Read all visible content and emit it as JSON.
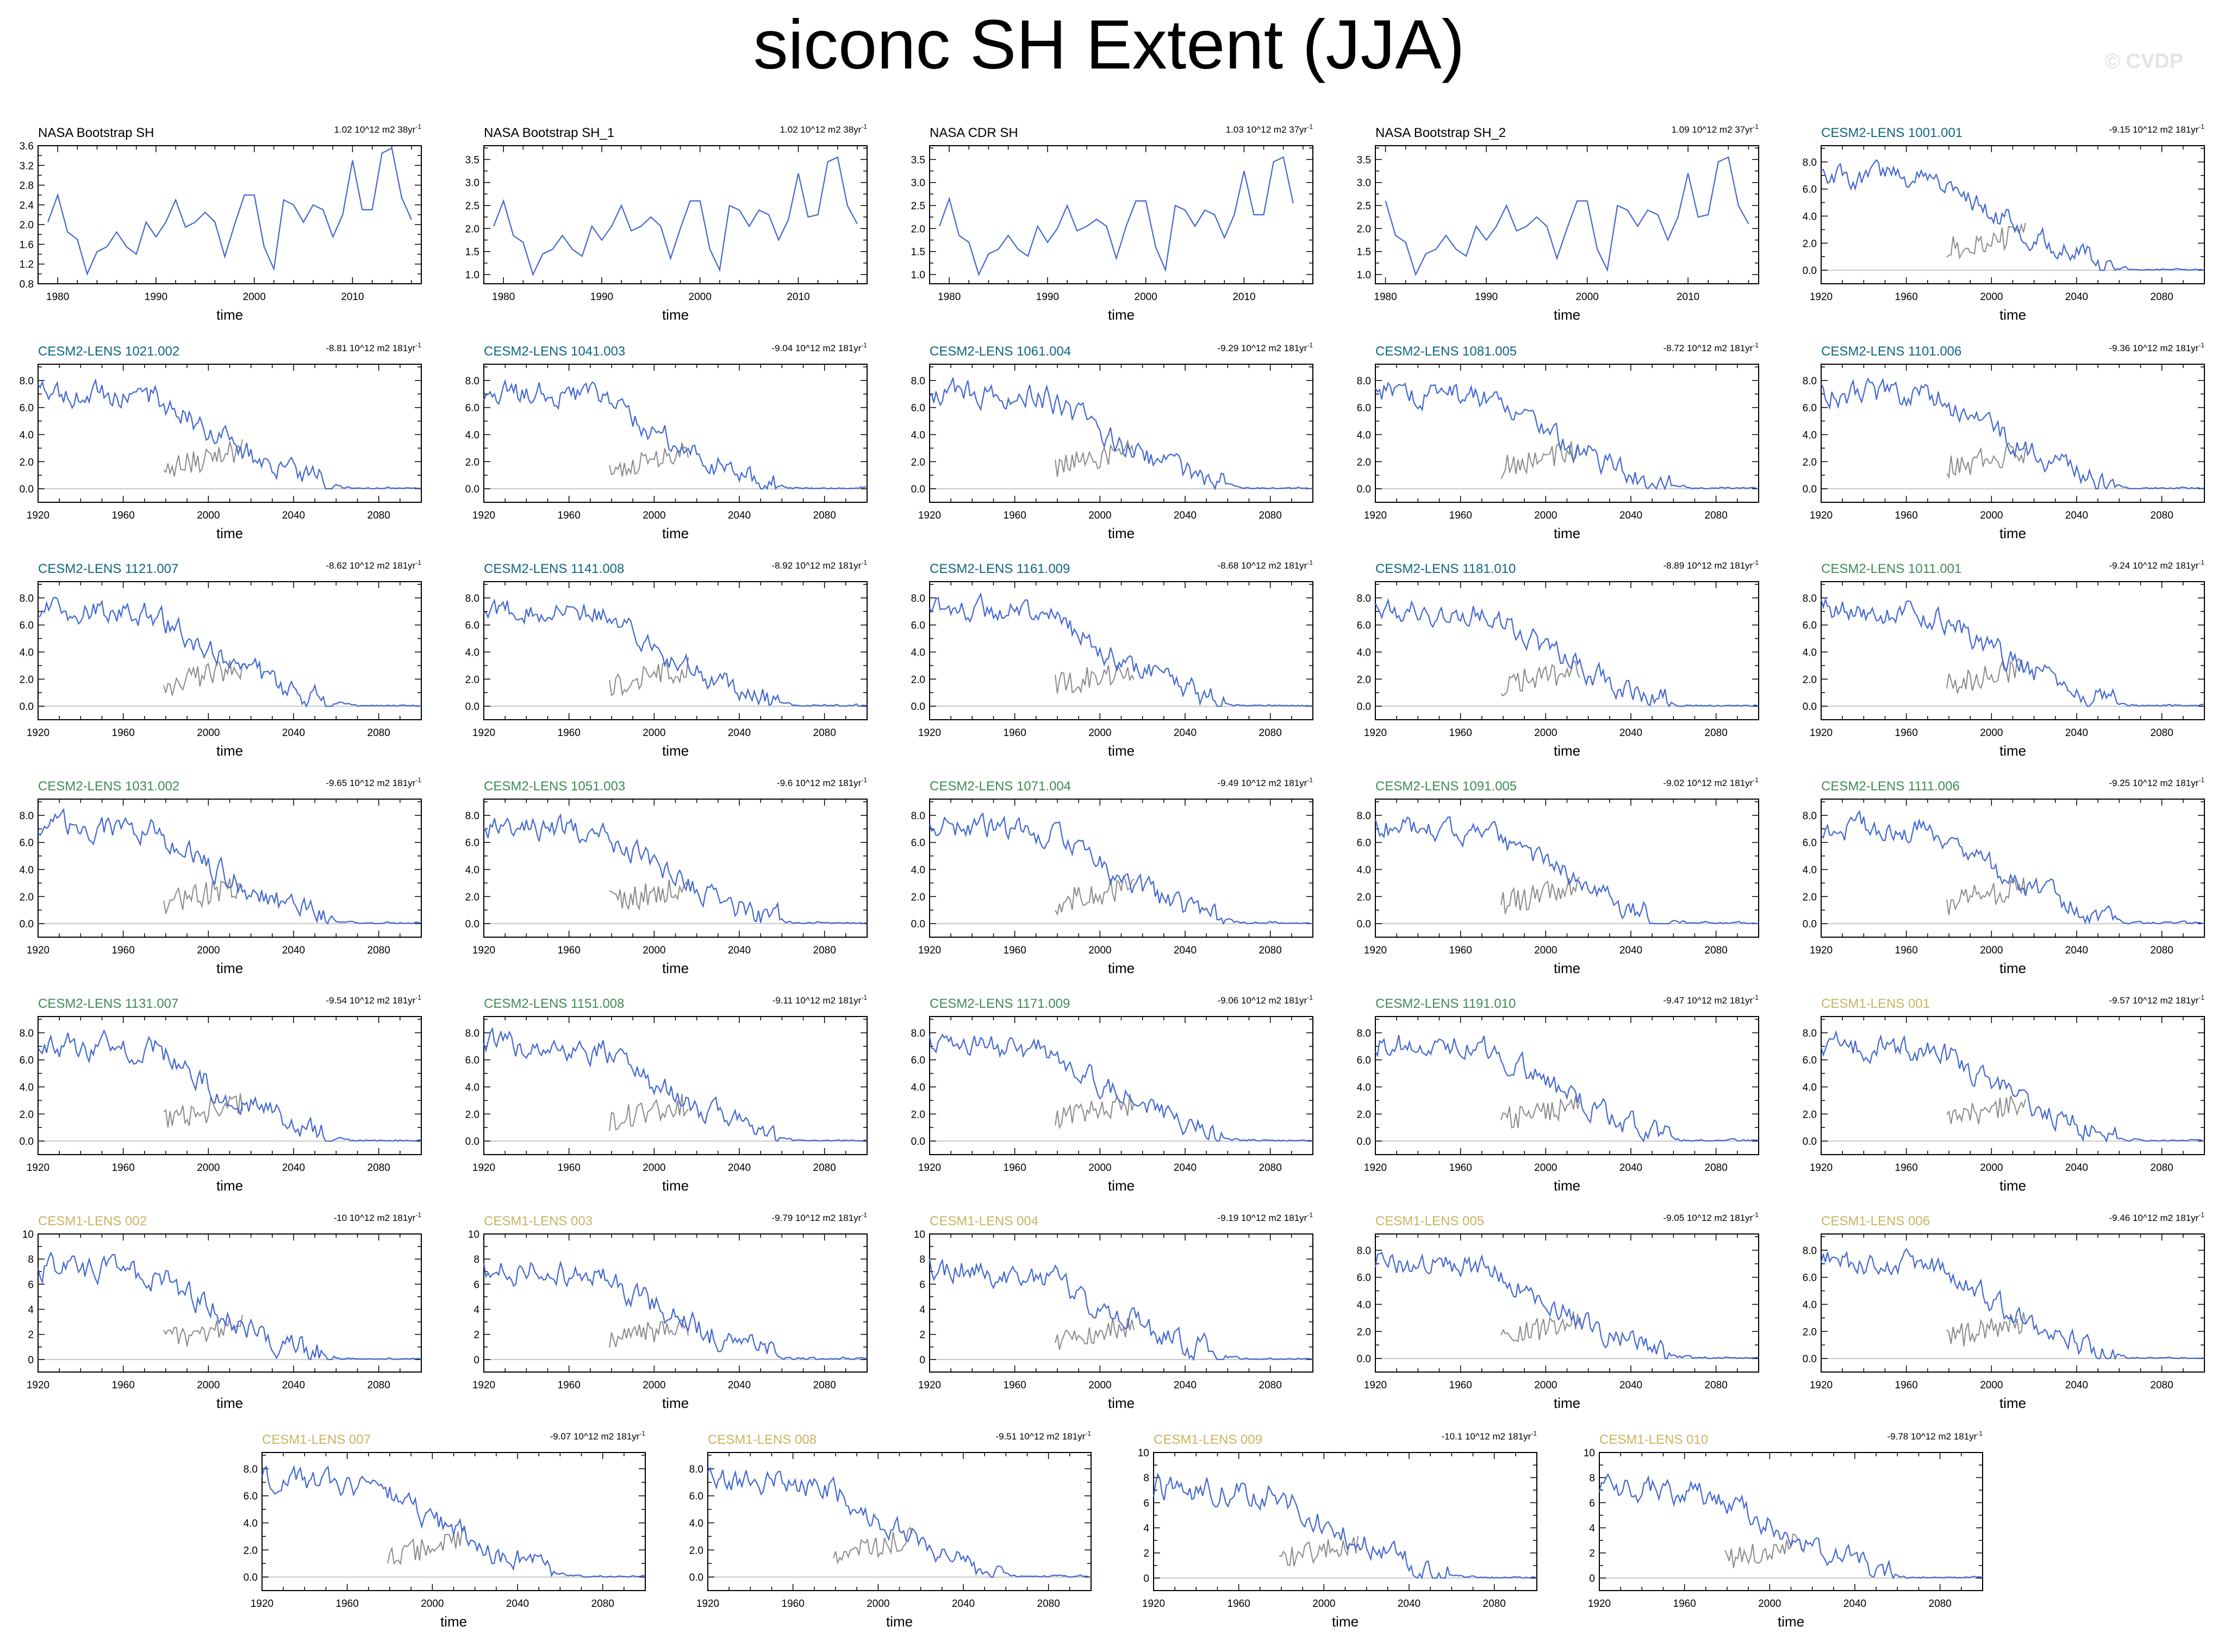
{
  "title": "siconc SH Extent (JJA)",
  "watermark": "© CVDP",
  "colors": {
    "line": "#4267d1",
    "obs_overlay": "#8a8a8a",
    "zero_line": "#c8c8c8",
    "obs_title": "#000000",
    "cesm2_a": "#10667f",
    "cesm2_b": "#3f8a55",
    "cesm1": "#c8b560"
  },
  "chart_data": [
    {
      "type": "line",
      "title": "NASA Bootstrap SH",
      "trend": "1.02 10^12 m2 38yr",
      "xlabel": "time",
      "xlim": [
        1978,
        2017
      ],
      "xticks": [
        1980,
        1990,
        2000,
        2010
      ],
      "ylim": [
        0.8,
        3.6
      ],
      "yticks": [
        0.8,
        1.2,
        1.6,
        2.0,
        2.4,
        2.8,
        3.2,
        3.6
      ],
      "yfmt": 1,
      "x_start": 1979,
      "values": [
        2.05,
        2.6,
        1.85,
        1.7,
        1.0,
        1.45,
        1.55,
        1.85,
        1.55,
        1.4,
        2.05,
        1.75,
        2.05,
        2.5,
        1.95,
        2.05,
        2.25,
        2.05,
        1.35,
        2.0,
        2.6,
        2.6,
        1.55,
        1.1,
        2.5,
        2.4,
        2.05,
        2.4,
        2.3,
        1.75,
        2.2,
        3.3,
        2.3,
        2.3,
        3.45,
        3.55,
        2.55,
        2.1
      ]
    },
    {
      "type": "line",
      "title": "NASA Bootstrap SH_1",
      "trend": "1.02 10^12 m2 38yr",
      "xlabel": "time",
      "xlim": [
        1978,
        2017
      ],
      "xticks": [
        1980,
        1990,
        2000,
        2010
      ],
      "ylim": [
        0.8,
        3.8
      ],
      "yticks": [
        1.0,
        1.5,
        2.0,
        2.5,
        3.0,
        3.5
      ],
      "yfmt": 1,
      "x_start": 1979,
      "values": [
        2.05,
        2.6,
        1.85,
        1.7,
        1.0,
        1.45,
        1.55,
        1.85,
        1.55,
        1.4,
        2.05,
        1.75,
        2.05,
        2.5,
        1.95,
        2.05,
        2.25,
        2.05,
        1.35,
        2.0,
        2.6,
        2.6,
        1.55,
        1.1,
        2.5,
        2.4,
        2.05,
        2.4,
        2.3,
        1.75,
        2.2,
        3.2,
        2.25,
        2.3,
        3.45,
        3.55,
        2.5,
        2.1
      ]
    },
    {
      "type": "line",
      "title": "NASA CDR SH",
      "trend": "1.03 10^12 m2 37yr",
      "xlabel": "time",
      "xlim": [
        1978,
        2017
      ],
      "xticks": [
        1980,
        1990,
        2000,
        2010
      ],
      "ylim": [
        0.8,
        3.8
      ],
      "yticks": [
        1.0,
        1.5,
        2.0,
        2.5,
        3.0,
        3.5
      ],
      "yfmt": 1,
      "x_start": 1979,
      "values": [
        2.05,
        2.65,
        1.85,
        1.7,
        1.0,
        1.45,
        1.55,
        1.85,
        1.55,
        1.4,
        2.05,
        1.7,
        2.0,
        2.5,
        1.95,
        2.05,
        2.2,
        2.05,
        1.35,
        2.05,
        2.6,
        2.6,
        1.6,
        1.1,
        2.5,
        2.4,
        2.05,
        2.4,
        2.3,
        1.8,
        2.3,
        3.25,
        2.3,
        2.3,
        3.45,
        3.55,
        2.55
      ]
    },
    {
      "type": "line",
      "title": "NASA Bootstrap SH_2",
      "trend": "1.09 10^12 m2 37yr",
      "xlabel": "time",
      "xlim": [
        1979,
        2017
      ],
      "xticks": [
        1980,
        1990,
        2000,
        2010
      ],
      "ylim": [
        0.8,
        3.8
      ],
      "yticks": [
        1.0,
        1.5,
        2.0,
        2.5,
        3.0,
        3.5
      ],
      "yfmt": 1,
      "x_start": 1980,
      "values": [
        2.6,
        1.85,
        1.7,
        1.0,
        1.45,
        1.55,
        1.85,
        1.55,
        1.4,
        2.05,
        1.75,
        2.05,
        2.5,
        1.95,
        2.05,
        2.25,
        2.05,
        1.35,
        2.0,
        2.6,
        2.6,
        1.55,
        1.1,
        2.5,
        2.4,
        2.05,
        2.4,
        2.3,
        1.75,
        2.25,
        3.2,
        2.25,
        2.3,
        3.45,
        3.55,
        2.5,
        2.1
      ]
    },
    {
      "type": "line",
      "title": "CESM2-LENS 1001.001",
      "trend": "-9.15 10^12 m2 181yr",
      "xlabel": "time",
      "seed": 101
    },
    {
      "type": "line",
      "title": "CESM2-LENS 1021.002",
      "trend": "-8.81 10^12 m2 181yr",
      "xlabel": "time",
      "seed": 102
    },
    {
      "type": "line",
      "title": "CESM2-LENS 1041.003",
      "trend": "-9.04 10^12 m2 181yr",
      "xlabel": "time",
      "seed": 103
    },
    {
      "type": "line",
      "title": "CESM2-LENS 1061.004",
      "trend": "-9.29 10^12 m2 181yr",
      "xlabel": "time",
      "seed": 104
    },
    {
      "type": "line",
      "title": "CESM2-LENS 1081.005",
      "trend": "-8.72 10^12 m2 181yr",
      "xlabel": "time",
      "seed": 105
    },
    {
      "type": "line",
      "title": "CESM2-LENS 1101.006",
      "trend": "-9.36 10^12 m2 181yr",
      "xlabel": "time",
      "seed": 106
    },
    {
      "type": "line",
      "title": "CESM2-LENS 1121.007",
      "trend": "-8.62 10^12 m2 181yr",
      "xlabel": "time",
      "seed": 107
    },
    {
      "type": "line",
      "title": "CESM2-LENS 1141.008",
      "trend": "-8.92 10^12 m2 181yr",
      "xlabel": "time",
      "seed": 108
    },
    {
      "type": "line",
      "title": "CESM2-LENS 1161.009",
      "trend": "-8.68 10^12 m2 181yr",
      "xlabel": "time",
      "seed": 109
    },
    {
      "type": "line",
      "title": "CESM2-LENS 1181.010",
      "trend": "-8.89 10^12 m2 181yr",
      "xlabel": "time",
      "seed": 110
    },
    {
      "type": "line",
      "title": "CESM2-LENS 1011.001",
      "trend": "-9.24 10^12 m2 181yr",
      "xlabel": "time",
      "seed": 111
    },
    {
      "type": "line",
      "title": "CESM2-LENS 1031.002",
      "trend": "-9.65 10^12 m2 181yr",
      "xlabel": "time",
      "seed": 112
    },
    {
      "type": "line",
      "title": "CESM2-LENS 1051.003",
      "trend": "-9.6 10^12 m2 181yr",
      "xlabel": "time",
      "seed": 113
    },
    {
      "type": "line",
      "title": "CESM2-LENS 1071.004",
      "trend": "-9.49 10^12 m2 181yr",
      "xlabel": "time",
      "seed": 114
    },
    {
      "type": "line",
      "title": "CESM2-LENS 1091.005",
      "trend": "-9.02 10^12 m2 181yr",
      "xlabel": "time",
      "seed": 115
    },
    {
      "type": "line",
      "title": "CESM2-LENS 1111.006",
      "trend": "-9.25 10^12 m2 181yr",
      "xlabel": "time",
      "seed": 116
    },
    {
      "type": "line",
      "title": "CESM2-LENS 1131.007",
      "trend": "-9.54 10^12 m2 181yr",
      "xlabel": "time",
      "seed": 117
    },
    {
      "type": "line",
      "title": "CESM2-LENS 1151.008",
      "trend": "-9.11 10^12 m2 181yr",
      "xlabel": "time",
      "seed": 118
    },
    {
      "type": "line",
      "title": "CESM2-LENS 1171.009",
      "trend": "-9.06 10^12 m2 181yr",
      "xlabel": "time",
      "seed": 119
    },
    {
      "type": "line",
      "title": "CESM2-LENS 1191.010",
      "trend": "-9.47 10^12 m2 181yr",
      "xlabel": "time",
      "seed": 120
    },
    {
      "type": "line",
      "title": "CESM1-LENS 001",
      "trend": "-9.57 10^12 m2 181yr",
      "xlabel": "time",
      "seed": 121
    },
    {
      "type": "line",
      "title": "CESM1-LENS 002",
      "trend": "-10 10^12 m2 181yr",
      "xlabel": "time",
      "seed": 122
    },
    {
      "type": "line",
      "title": "CESM1-LENS 003",
      "trend": "-9.79 10^12 m2 181yr",
      "xlabel": "time",
      "seed": 123
    },
    {
      "type": "line",
      "title": "CESM1-LENS 004",
      "trend": "-9.19 10^12 m2 181yr",
      "xlabel": "time",
      "seed": 124
    },
    {
      "type": "line",
      "title": "CESM1-LENS 005",
      "trend": "-9.05 10^12 m2 181yr",
      "xlabel": "time",
      "seed": 125
    },
    {
      "type": "line",
      "title": "CESM1-LENS 006",
      "trend": "-9.46 10^12 m2 181yr",
      "xlabel": "time",
      "seed": 126
    },
    {
      "type": "line",
      "title": "CESM1-LENS 007",
      "trend": "-9.07 10^12 m2 181yr",
      "xlabel": "time",
      "seed": 127
    },
    {
      "type": "line",
      "title": "CESM1-LENS 008",
      "trend": "-9.51 10^12 m2 181yr",
      "xlabel": "time",
      "seed": 128
    },
    {
      "type": "line",
      "title": "CESM1-LENS 009",
      "trend": "-10.1 10^12 m2 181yr",
      "xlabel": "time",
      "seed": 129
    },
    {
      "type": "line",
      "title": "CESM1-LENS 010",
      "trend": "-9.78 10^12 m2 181yr",
      "xlabel": "time",
      "seed": 130
    }
  ]
}
